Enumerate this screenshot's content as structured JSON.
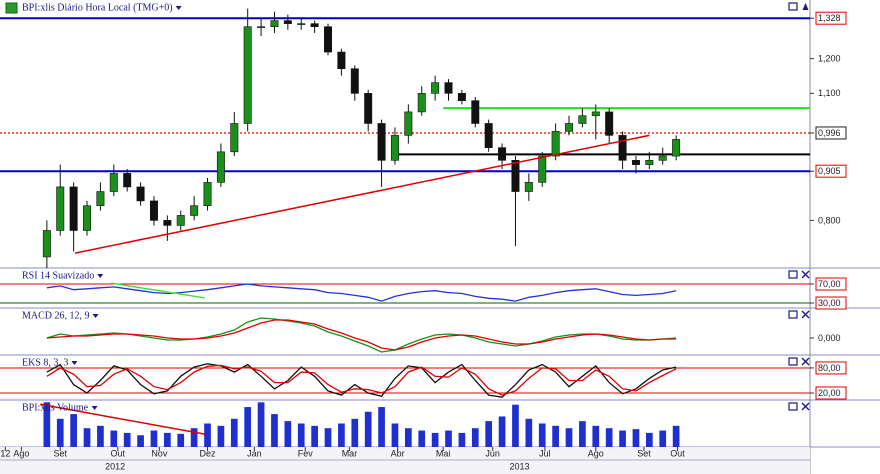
{
  "chart_data": [
    {
      "type": "candlestick",
      "title": "BPI:xlis Diário Hora Local (TMG+0)",
      "log": true,
      "ylim": [
        0.71,
        1.39
      ],
      "yticks": [
        {
          "value": 0.8,
          "label": "0,800"
        },
        {
          "value": 0.905,
          "label": "0,905"
        },
        {
          "value": 0.996,
          "label": "0,996"
        },
        {
          "value": 1.1,
          "label": "1,100"
        },
        {
          "value": 1.2,
          "label": "1,200"
        },
        {
          "value": 1.328,
          "label": "1,328"
        }
      ],
      "open": [
        0.73,
        0.78,
        0.87,
        0.78,
        0.83,
        0.86,
        0.9,
        0.87,
        0.84,
        0.8,
        0.79,
        0.81,
        0.83,
        0.88,
        0.95,
        1.02,
        1.3,
        1.3,
        1.32,
        1.31,
        1.31,
        1.3,
        1.22,
        1.17,
        1.1,
        1.02,
        0.93,
        0.99,
        1.05,
        1.1,
        1.13,
        1.1,
        1.08,
        1.02,
        0.96,
        0.93,
        0.86,
        0.88,
        0.94,
        1.0,
        1.02,
        1.04,
        1.05,
        0.99,
        0.93,
        0.92,
        0.93,
        0.94
      ],
      "high": [
        0.8,
        0.92,
        0.88,
        0.84,
        0.88,
        0.92,
        0.91,
        0.88,
        0.85,
        0.81,
        0.82,
        0.85,
        0.89,
        0.97,
        1.05,
        1.36,
        1.33,
        1.35,
        1.34,
        1.33,
        1.32,
        1.31,
        1.23,
        1.18,
        1.11,
        1.03,
        1.01,
        1.07,
        1.12,
        1.15,
        1.14,
        1.11,
        1.09,
        1.03,
        0.97,
        0.94,
        0.9,
        0.95,
        1.02,
        1.04,
        1.06,
        1.07,
        1.06,
        1.0,
        0.94,
        0.95,
        0.96,
        0.99
      ],
      "low": [
        0.71,
        0.77,
        0.74,
        0.77,
        0.82,
        0.85,
        0.86,
        0.83,
        0.79,
        0.76,
        0.78,
        0.8,
        0.82,
        0.87,
        0.94,
        1.0,
        1.27,
        1.28,
        1.29,
        1.29,
        1.28,
        1.21,
        1.15,
        1.08,
        1.0,
        0.87,
        0.92,
        0.97,
        1.04,
        1.08,
        1.08,
        1.07,
        1.01,
        0.95,
        0.91,
        0.75,
        0.84,
        0.87,
        0.93,
        0.99,
        1.01,
        0.98,
        0.97,
        0.91,
        0.9,
        0.91,
        0.92,
        0.93
      ],
      "close": [
        0.78,
        0.87,
        0.78,
        0.83,
        0.86,
        0.9,
        0.87,
        0.84,
        0.8,
        0.79,
        0.81,
        0.83,
        0.88,
        0.95,
        1.02,
        1.3,
        1.3,
        1.32,
        1.31,
        1.31,
        1.3,
        1.22,
        1.17,
        1.1,
        1.02,
        0.93,
        0.99,
        1.05,
        1.1,
        1.13,
        1.1,
        1.08,
        1.02,
        0.96,
        0.93,
        0.86,
        0.88,
        0.94,
        1.0,
        1.02,
        1.04,
        1.05,
        0.99,
        0.93,
        0.92,
        0.93,
        0.94,
        0.98
      ],
      "up_color": "#1a8f1a",
      "down_color": "#111111",
      "hlines": [
        {
          "value": 1.328,
          "color": "#0000cc"
        },
        {
          "value": 0.996,
          "color": "#e00000"
        },
        {
          "value": 0.905,
          "color": "#0000cc"
        },
        {
          "value": 1.06,
          "color": "#22dd22",
          "start": 29.6
        },
        {
          "value": 0.944,
          "color": "#000000",
          "start": 26.2
        }
      ],
      "trendline": {
        "from": [
          2.1,
          0.737
        ],
        "to": [
          45,
          0.99
        ],
        "color": "#e00000"
      }
    },
    {
      "type": "line",
      "title": "RSI 14 Suavizado",
      "ylim": [
        19.5,
        103.7
      ],
      "yticks": [
        {
          "value": 70,
          "label": "70,00"
        },
        {
          "value": 30,
          "label": "30,00"
        }
      ],
      "level_colors": [
        "#e00000",
        "#006400"
      ],
      "series": [
        {
          "color": "#2233dd",
          "values": [
            62,
            66,
            58,
            60,
            62,
            64,
            60,
            56,
            52,
            50,
            52,
            55,
            58,
            62,
            66,
            70,
            66,
            64,
            62,
            60,
            58,
            52,
            50,
            46,
            42,
            34,
            44,
            50,
            54,
            56,
            52,
            50,
            44,
            40,
            38,
            34,
            42,
            46,
            52,
            56,
            58,
            60,
            54,
            48,
            46,
            48,
            50,
            56
          ]
        }
      ],
      "trendline": {
        "from": [
          4.8,
          72
        ],
        "to": [
          11.8,
          40.7
        ],
        "color": "#44dd44"
      }
    },
    {
      "type": "line",
      "title": "MACD 26, 12, 9",
      "ylim": [
        -0.017,
        0.03
      ],
      "yticks": [
        {
          "value": 0,
          "label": "0,000"
        }
      ],
      "series": [
        {
          "color": "#1a8f1a",
          "values": [
            0.0,
            0.004,
            0.002,
            0.003,
            0.004,
            0.005,
            0.004,
            0.002,
            0.0,
            -0.002,
            -0.002,
            -0.001,
            0.001,
            0.004,
            0.008,
            0.016,
            0.02,
            0.019,
            0.017,
            0.015,
            0.012,
            0.006,
            0.002,
            -0.003,
            -0.008,
            -0.014,
            -0.012,
            -0.006,
            -0.001,
            0.003,
            0.004,
            0.003,
            0.0,
            -0.004,
            -0.006,
            -0.008,
            -0.006,
            -0.003,
            0.001,
            0.003,
            0.004,
            0.004,
            0.002,
            -0.001,
            -0.002,
            -0.002,
            -0.001,
            0.0
          ]
        },
        {
          "color": "#e00000",
          "values": [
            0.0,
            0.001,
            0.002,
            0.002,
            0.003,
            0.004,
            0.004,
            0.003,
            0.002,
            0.0,
            -0.001,
            -0.001,
            0.0,
            0.002,
            0.005,
            0.01,
            0.015,
            0.018,
            0.018,
            0.016,
            0.014,
            0.009,
            0.005,
            0.0,
            -0.004,
            -0.01,
            -0.012,
            -0.009,
            -0.004,
            0.0,
            0.002,
            0.003,
            0.002,
            -0.001,
            -0.004,
            -0.006,
            -0.006,
            -0.004,
            -0.001,
            0.001,
            0.003,
            0.004,
            0.003,
            0.001,
            -0.001,
            -0.002,
            -0.001,
            -0.001
          ]
        }
      ]
    },
    {
      "type": "line",
      "title": "EKS 8, 3, 3",
      "ylim": [
        3.2,
        111
      ],
      "yticks": [
        {
          "value": 80,
          "label": "80,00"
        },
        {
          "value": 20,
          "label": "20,00"
        }
      ],
      "level_colors": [
        "#e00000",
        "#e00000"
      ],
      "series": [
        {
          "color": "#111111",
          "values": [
            70,
            88,
            40,
            20,
            50,
            85,
            75,
            40,
            18,
            25,
            60,
            82,
            90,
            85,
            70,
            88,
            60,
            30,
            50,
            82,
            60,
            25,
            15,
            40,
            20,
            12,
            55,
            85,
            80,
            45,
            70,
            88,
            50,
            15,
            10,
            40,
            75,
            88,
            70,
            35,
            60,
            85,
            45,
            18,
            30,
            55,
            75,
            82
          ]
        },
        {
          "color": "#e00000",
          "values": [
            60,
            80,
            65,
            35,
            38,
            65,
            78,
            60,
            35,
            28,
            45,
            70,
            84,
            86,
            78,
            82,
            72,
            45,
            45,
            70,
            68,
            40,
            22,
            30,
            28,
            20,
            35,
            70,
            82,
            60,
            58,
            80,
            65,
            30,
            15,
            25,
            55,
            80,
            78,
            50,
            50,
            75,
            60,
            30,
            25,
            45,
            62,
            78
          ]
        }
      ]
    },
    {
      "type": "bar",
      "title": "BPI:xlis Volume",
      "ylim": [
        0,
        100
      ],
      "color": "#1f2fd0",
      "values": [
        95,
        60,
        70,
        40,
        45,
        35,
        30,
        25,
        35,
        30,
        28,
        40,
        50,
        45,
        60,
        85,
        95,
        70,
        55,
        50,
        45,
        40,
        50,
        60,
        75,
        85,
        50,
        40,
        35,
        30,
        35,
        30,
        40,
        55,
        65,
        90,
        60,
        50,
        45,
        40,
        55,
        45,
        40,
        35,
        38,
        30,
        35,
        45
      ],
      "trendline": {
        "from": [
          -0.5,
          90.9
        ],
        "to": [
          11.8,
          27.3
        ],
        "color": "#e00000"
      },
      "xlim": [
        -3.5,
        57
      ],
      "xticks": [
        {
          "value": -3.1,
          "label": "12"
        },
        {
          "value": -1.9,
          "label": "Ago"
        },
        {
          "value": 1.0,
          "label": "Set"
        },
        {
          "value": 5.3,
          "label": "Out"
        },
        {
          "value": 8.4,
          "label": "Nov"
        },
        {
          "value": 12.0,
          "label": "Dez"
        },
        {
          "value": 15.5,
          "label": "Jan"
        },
        {
          "value": 19.3,
          "label": "Fev"
        },
        {
          "value": 22.6,
          "label": "Mar"
        },
        {
          "value": 26.2,
          "label": "Abr"
        },
        {
          "value": 29.6,
          "label": "Mai"
        },
        {
          "value": 33.3,
          "label": "Jun"
        },
        {
          "value": 37.2,
          "label": "Jul"
        },
        {
          "value": 41.0,
          "label": "Ago"
        },
        {
          "value": 44.6,
          "label": "Set"
        },
        {
          "value": 47.1,
          "label": "Out"
        }
      ],
      "year_ticks": [
        {
          "value": 5.1,
          "label": "2012"
        },
        {
          "value": 35.3,
          "label": "2013"
        }
      ]
    }
  ]
}
